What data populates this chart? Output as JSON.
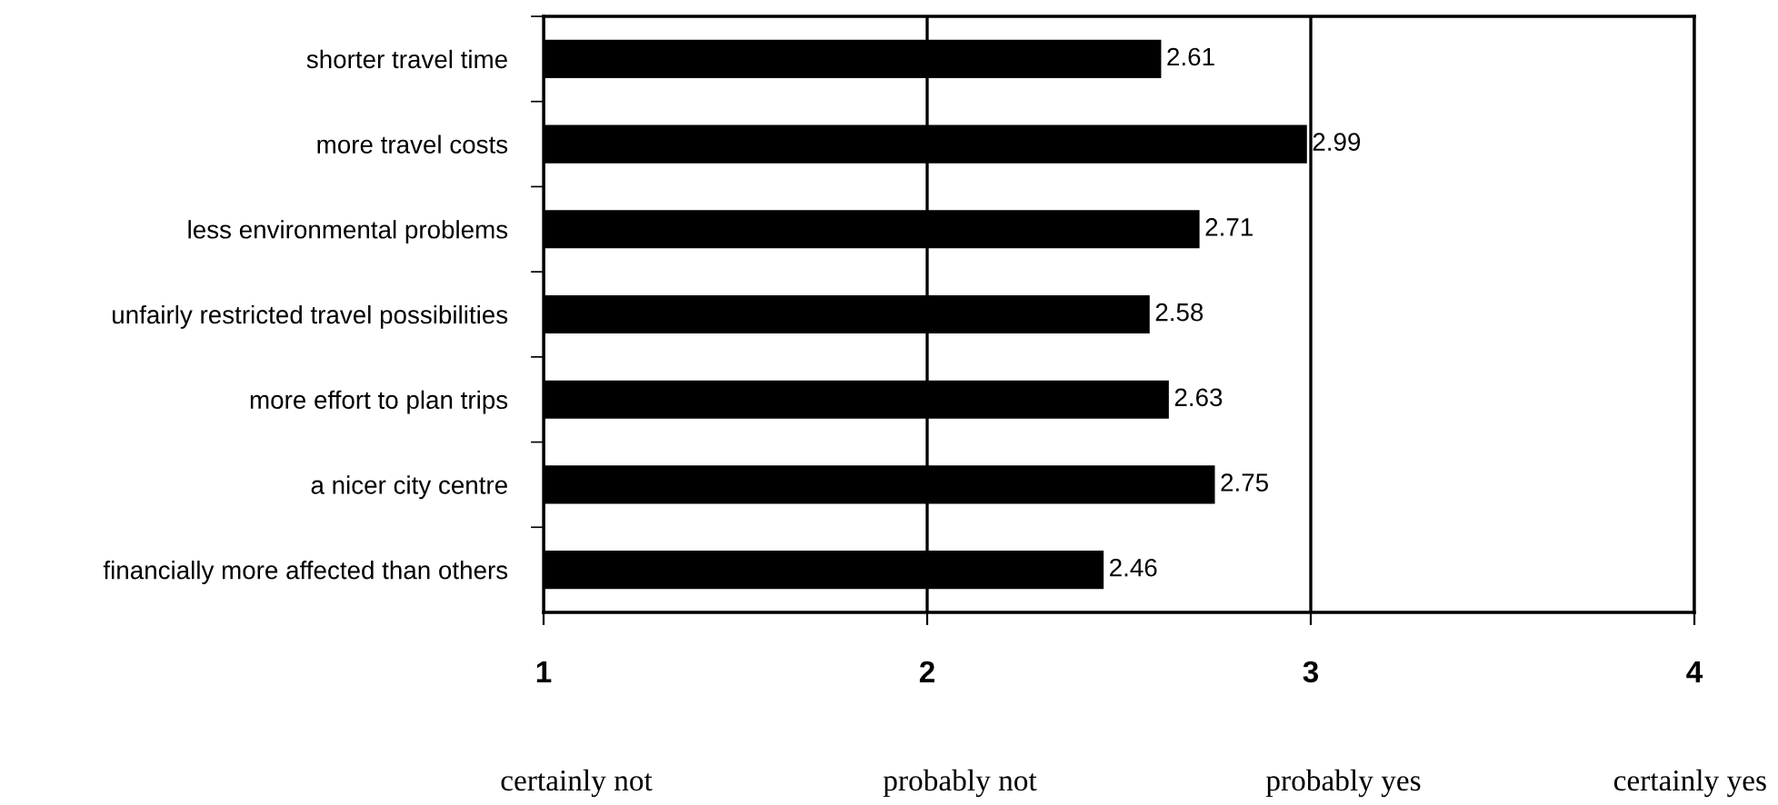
{
  "chart_data": {
    "type": "bar",
    "orientation": "horizontal",
    "categories": [
      "shorter travel time",
      "more travel costs",
      "less environmental problems",
      "unfairly restricted travel possibilities",
      "more effort to plan trips",
      "a nicer city centre",
      "financially more affected than others"
    ],
    "values": [
      2.61,
      2.99,
      2.71,
      2.58,
      2.63,
      2.75,
      2.46
    ],
    "color": "#000000",
    "data_labels": true,
    "xlim": [
      1,
      4
    ],
    "xticks": [
      1,
      2,
      3,
      4
    ],
    "grid": "x",
    "annotations": [
      "certainly not",
      "probably not",
      "probably yes",
      "certainly yes"
    ]
  }
}
